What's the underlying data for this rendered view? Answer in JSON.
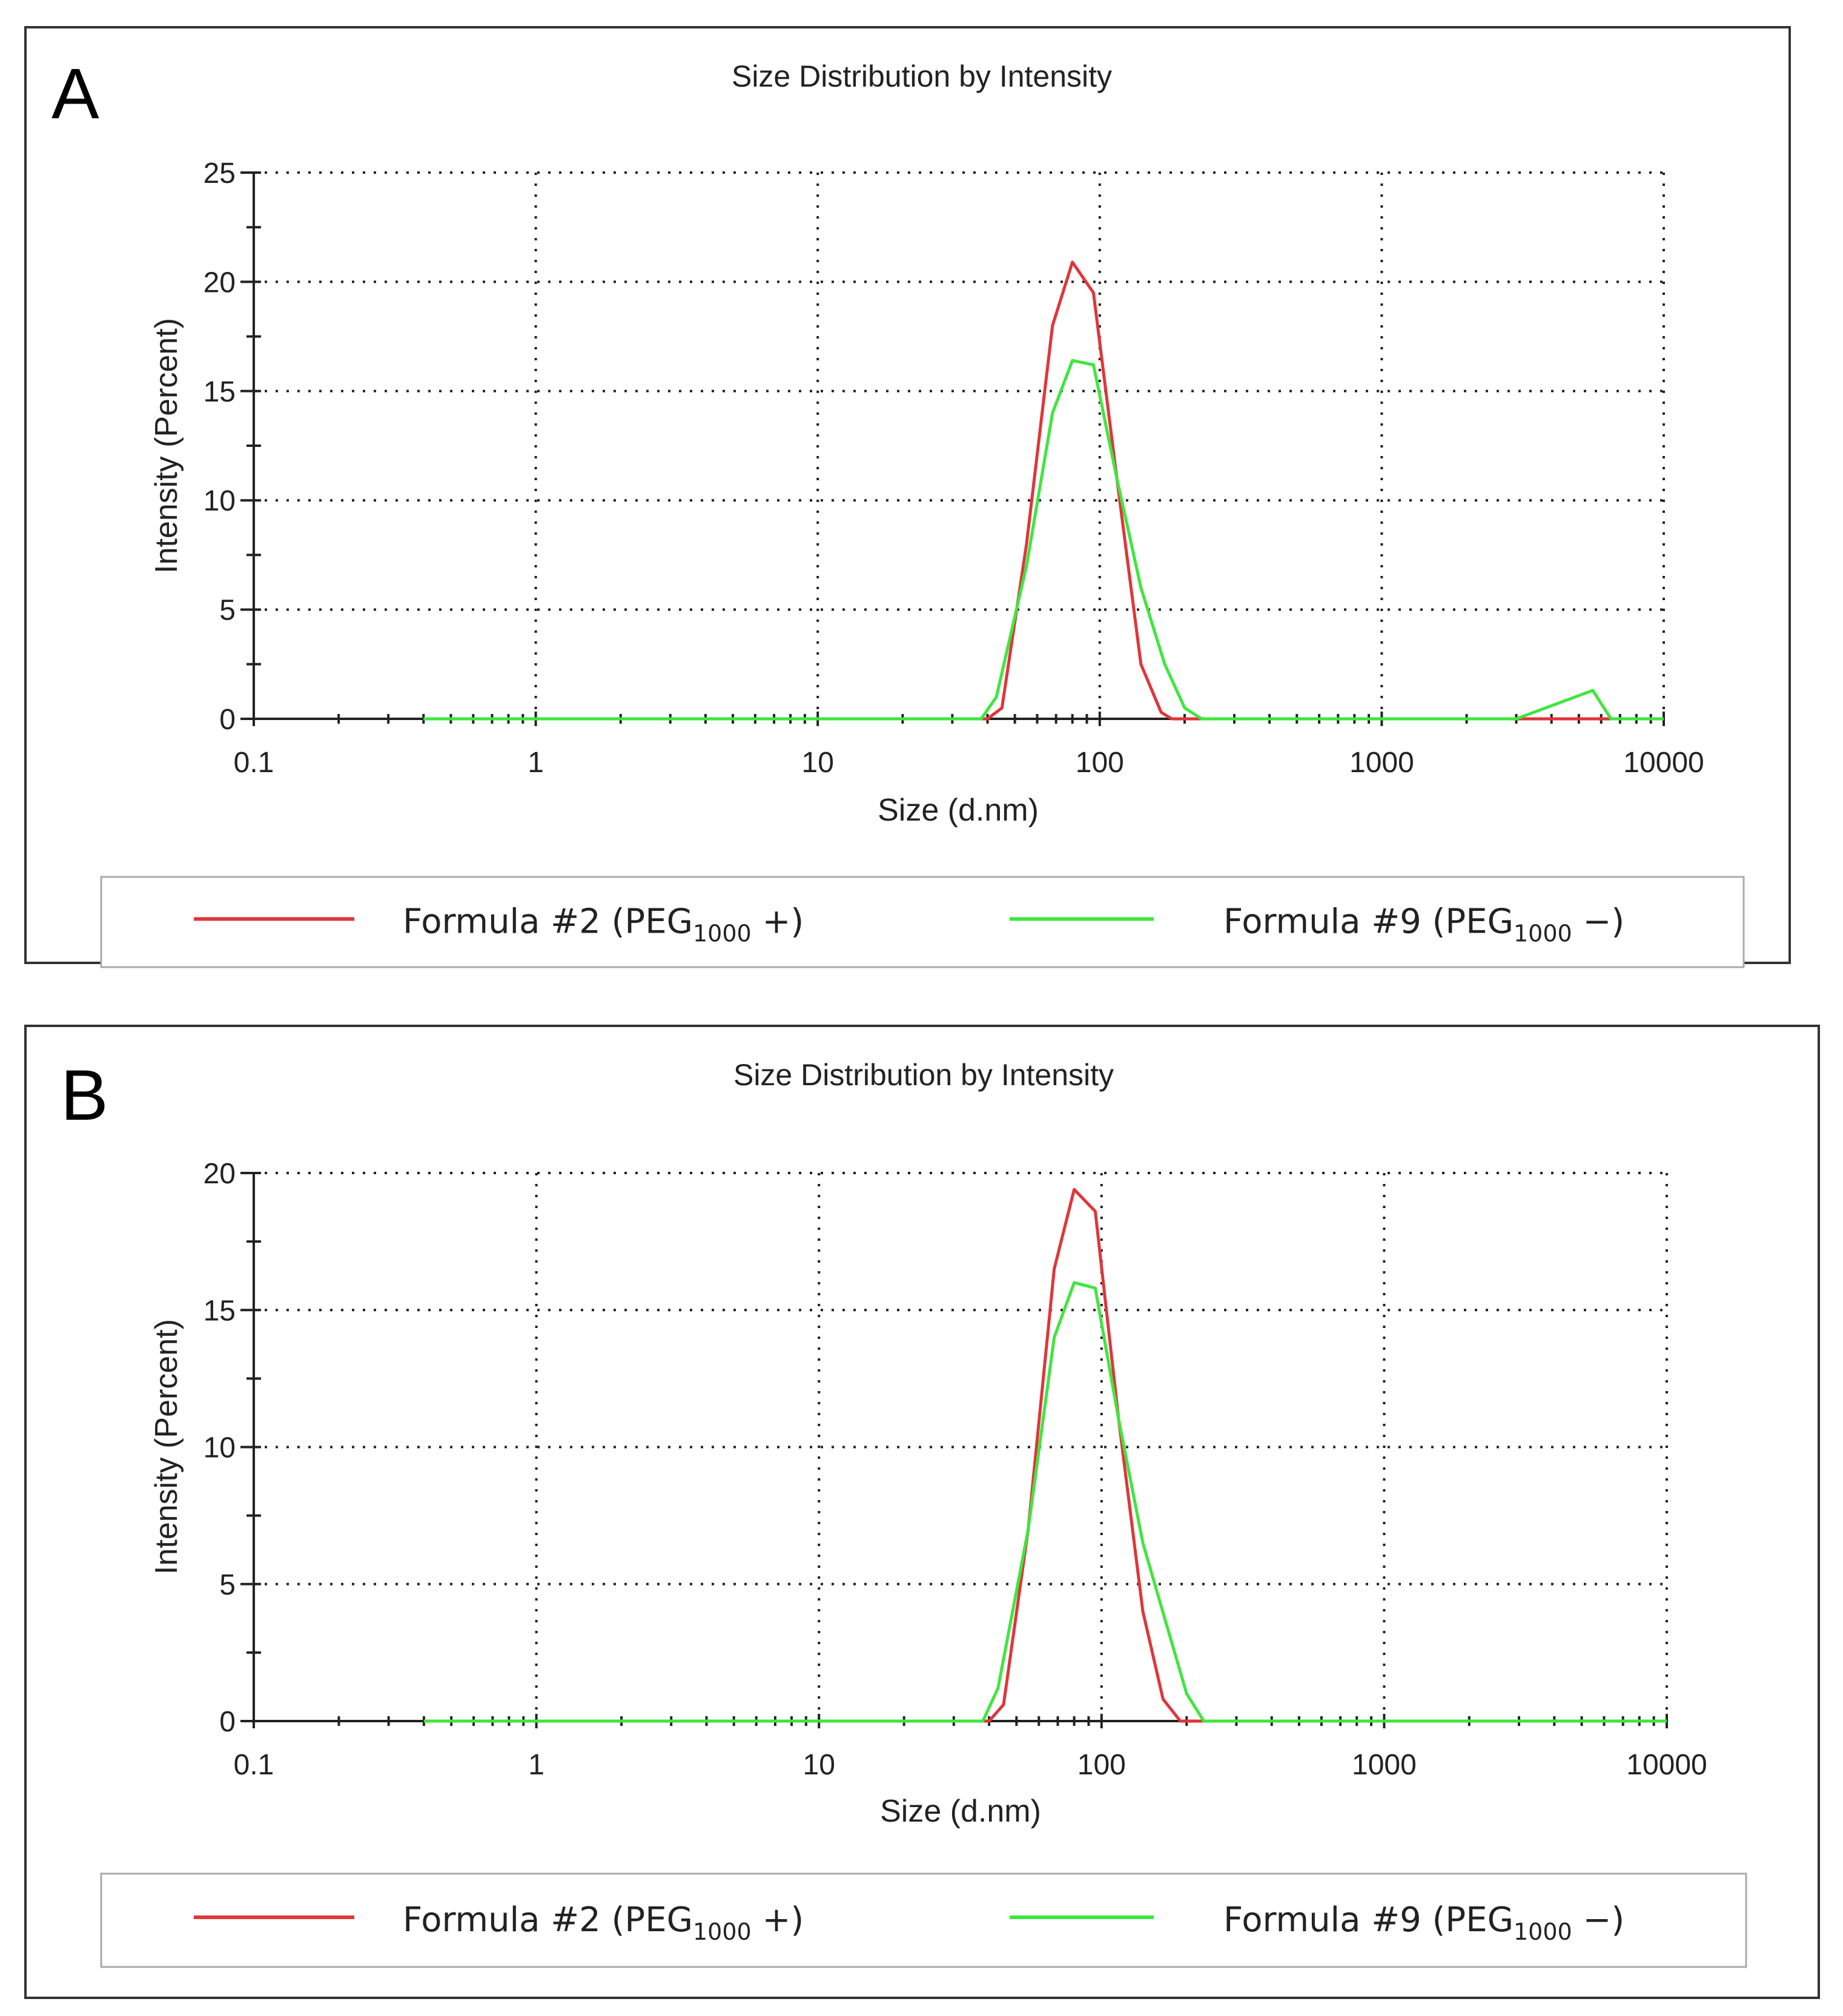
{
  "colors": {
    "formula2": "#e0353a",
    "formula9": "#3fe63f",
    "frame": "#333333",
    "legend_border": "#aaaaaa"
  },
  "chart_data": [
    {
      "panel_label": "A",
      "type": "line",
      "title": "Size Distribution by Intensity",
      "xlabel": "Size (d.nm)",
      "ylabel": "Intensity (Percent)",
      "xscale": "log",
      "xlim": [
        0.1,
        10000
      ],
      "ylim": [
        0,
        25
      ],
      "x_tick_labels": [
        "0.1",
        "1",
        "10",
        "100",
        "1000",
        "10000"
      ],
      "y_tick_labels": [
        "0",
        "5",
        "10",
        "15",
        "20",
        "25"
      ],
      "grid": true,
      "legend": "bottom",
      "series": [
        {
          "name": "Formula #2",
          "label_prefix": "Formula #2 (PEG",
          "label_sub": "1000",
          "label_suffix": " +)",
          "color": "#e0353a",
          "x": [
            0.4,
            40,
            45,
            55,
            68,
            80,
            95,
            115,
            140,
            165,
            180,
            10000
          ],
          "y": [
            0,
            0,
            0.5,
            8,
            18,
            20.9,
            19.5,
            11,
            2.5,
            0.3,
            0,
            0
          ]
        },
        {
          "name": "Formula #9",
          "label_prefix": "Formula #9 (PEG",
          "label_sub": "1000",
          "label_suffix": " −)",
          "color": "#3fe63f",
          "x": [
            0.4,
            38,
            43,
            55,
            68,
            80,
            95,
            115,
            140,
            170,
            200,
            230,
            3000,
            4200,
            5600,
            6500,
            10000
          ],
          "y": [
            0,
            0,
            1,
            7,
            14,
            16.4,
            16.2,
            11,
            6,
            2.5,
            0.5,
            0,
            0,
            0.7,
            1.3,
            0,
            0
          ]
        }
      ]
    },
    {
      "panel_label": "B",
      "type": "line",
      "title": "Size Distribution by Intensity",
      "xlabel": "Size (d.nm)",
      "ylabel": "Intensity (Percent)",
      "xscale": "log",
      "xlim": [
        0.1,
        10000
      ],
      "ylim": [
        0,
        20
      ],
      "x_tick_labels": [
        "0.1",
        "1",
        "10",
        "100",
        "1000",
        "10000"
      ],
      "y_tick_labels": [
        "0",
        "5",
        "10",
        "15",
        "20"
      ],
      "grid": true,
      "legend": "bottom",
      "series": [
        {
          "name": "Formula #2",
          "label_prefix": "Formula #2 (PEG",
          "label_sub": "1000",
          "label_suffix": " +)",
          "color": "#e0353a",
          "x": [
            0.4,
            40,
            45,
            55,
            68,
            80,
            95,
            115,
            140,
            165,
            190,
            10000
          ],
          "y": [
            0,
            0,
            0.6,
            7,
            16.5,
            19.4,
            18.6,
            11,
            4,
            0.8,
            0,
            0
          ]
        },
        {
          "name": "Formula #9",
          "label_prefix": "Formula #9 (PEG",
          "label_sub": "1000",
          "label_suffix": " −)",
          "color": "#3fe63f",
          "x": [
            0.4,
            38,
            43,
            55,
            68,
            80,
            95,
            115,
            140,
            170,
            200,
            230,
            10000
          ],
          "y": [
            0,
            0,
            1.2,
            7,
            14,
            16,
            15.8,
            11,
            6.5,
            3.5,
            1,
            0,
            0
          ]
        }
      ]
    }
  ]
}
